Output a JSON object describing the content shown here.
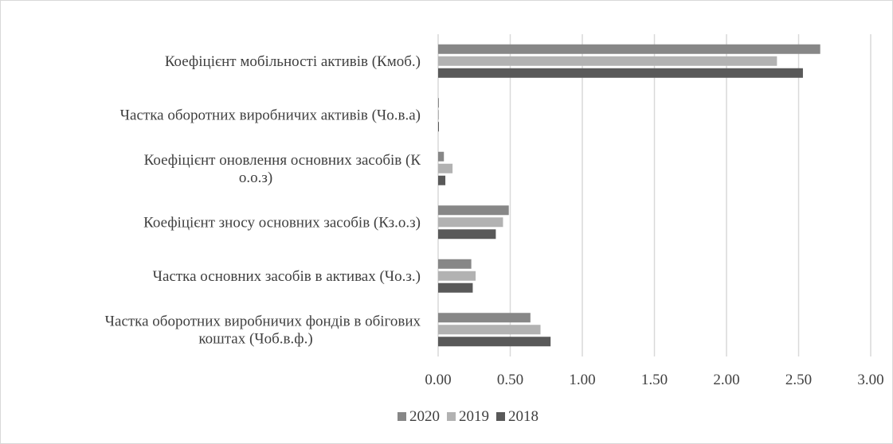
{
  "chart_data": {
    "type": "bar",
    "orientation": "horizontal",
    "categories": [
      "Коефіцієнт мобільності активів (Кмоб.)",
      "Частка оборотних виробничих активів (Чо.в.а)",
      "Коефіцієнт оновлення основних засобів (К о.о.з)",
      "Коефіцієнт зносу основних засобів (Кз.о.з)",
      "Частка основних засобів в активах (Чо.з.)",
      "Частка оборотних виробничих фондів в обігових коштах (Чоб.в.ф.)"
    ],
    "series": [
      {
        "name": "2020",
        "color": "#878787",
        "values": [
          2.65,
          0.003,
          0.04,
          0.49,
          0.23,
          0.64
        ]
      },
      {
        "name": "2019",
        "color": "#b2b2b2",
        "values": [
          2.35,
          0.003,
          0.1,
          0.45,
          0.26,
          0.71
        ]
      },
      {
        "name": "2018",
        "color": "#595959",
        "values": [
          2.53,
          0.003,
          0.05,
          0.4,
          0.24,
          0.78
        ]
      }
    ],
    "xlim": [
      0,
      3
    ],
    "xticks": [
      "0.00",
      "0.50",
      "1.00",
      "1.50",
      "2.00",
      "2.50",
      "3.00"
    ],
    "grid": true,
    "legend_position": "bottom",
    "title": "",
    "xlabel": "",
    "ylabel": ""
  }
}
